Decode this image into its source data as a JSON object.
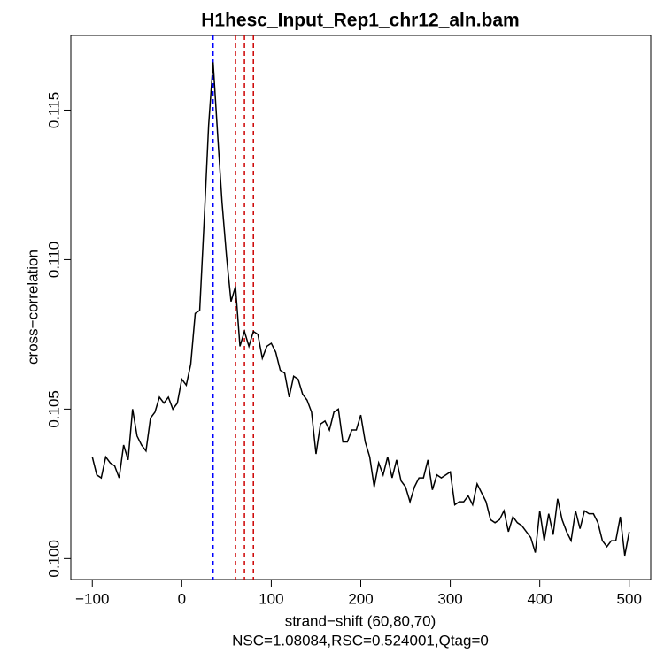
{
  "chart_data": {
    "type": "line",
    "title": "H1hesc_Input_Rep1_chr12_aln.bam",
    "xlabel": "strand−shift (60,80,70)",
    "xlabel2": "NSC=1.08084,RSC=0.524001,Qtag=0",
    "ylabel": "cross−correlation",
    "x": [
      -100,
      -95,
      -90,
      -85,
      -80,
      -75,
      -70,
      -65,
      -60,
      -55,
      -50,
      -45,
      -40,
      -35,
      -30,
      -25,
      -20,
      -15,
      -10,
      -5,
      0,
      5,
      10,
      15,
      20,
      25,
      30,
      35,
      40,
      45,
      50,
      55,
      60,
      65,
      70,
      75,
      80,
      85,
      90,
      95,
      100,
      105,
      110,
      115,
      120,
      125,
      130,
      135,
      140,
      145,
      150,
      155,
      160,
      165,
      170,
      175,
      180,
      185,
      190,
      195,
      200,
      205,
      210,
      215,
      220,
      225,
      230,
      235,
      240,
      245,
      250,
      255,
      260,
      265,
      270,
      275,
      280,
      285,
      290,
      295,
      300,
      305,
      310,
      315,
      320,
      325,
      330,
      335,
      340,
      345,
      350,
      355,
      360,
      365,
      370,
      375,
      380,
      385,
      390,
      395,
      400,
      405,
      410,
      415,
      420,
      425,
      430,
      435,
      440,
      445,
      450,
      455,
      460,
      465,
      470,
      475,
      480,
      485,
      490,
      495,
      500
    ],
    "series": [
      {
        "color": "#000000",
        "values": [
          0.1034,
          0.1028,
          0.1027,
          0.1034,
          0.1032,
          0.1031,
          0.1027,
          0.1038,
          0.1033,
          0.105,
          0.1041,
          0.1038,
          0.1036,
          0.1047,
          0.1049,
          0.1054,
          0.1052,
          0.1054,
          0.105,
          0.1052,
          0.106,
          0.1058,
          0.1065,
          0.1082,
          0.1083,
          0.1113,
          0.1145,
          0.1166,
          0.1142,
          0.1119,
          0.1101,
          0.1086,
          0.1091,
          0.1071,
          0.1076,
          0.1071,
          0.1076,
          0.1075,
          0.1067,
          0.1071,
          0.1072,
          0.1069,
          0.1063,
          0.1062,
          0.1054,
          0.1061,
          0.106,
          0.1055,
          0.1053,
          0.1049,
          0.1035,
          0.1045,
          0.1046,
          0.1043,
          0.1049,
          0.105,
          0.1039,
          0.1039,
          0.1043,
          0.1043,
          0.1048,
          0.1039,
          0.1034,
          0.1024,
          0.1032,
          0.1028,
          0.1034,
          0.1027,
          0.1033,
          0.1026,
          0.1024,
          0.1019,
          0.1024,
          0.1027,
          0.1027,
          0.1033,
          0.1023,
          0.1028,
          0.1027,
          0.1028,
          0.1029,
          0.1018,
          0.1019,
          0.1019,
          0.1021,
          0.1018,
          0.1025,
          0.1022,
          0.1019,
          0.1013,
          0.1012,
          0.1013,
          0.1016,
          0.1009,
          0.1014,
          0.1012,
          0.1011,
          0.1009,
          0.1007,
          0.1002,
          0.1016,
          0.1006,
          0.1015,
          0.1008,
          0.102,
          0.1013,
          0.1009,
          0.1006,
          0.1016,
          0.101,
          0.1016,
          0.1015,
          0.1015,
          0.1012,
          0.1006,
          0.1004,
          0.1006,
          0.1006,
          0.1014,
          0.1001,
          0.1009
        ]
      }
    ],
    "vlines": [
      {
        "value": 35,
        "color": "#0000ff"
      },
      {
        "value": 60,
        "color": "#cc0000"
      },
      {
        "value": 80,
        "color": "#cc0000"
      },
      {
        "value": 70,
        "color": "#cc0000"
      }
    ],
    "xlim": [
      -124,
      524
    ],
    "ylim": [
      0.0993,
      0.1175
    ],
    "xticks": [
      {
        "value": -100,
        "label": "−100"
      },
      0,
      100,
      200,
      300,
      400,
      500
    ],
    "yticks": [
      {
        "value": 0.1,
        "label": "0.100"
      },
      0.105,
      {
        "value": 0.11,
        "label": "0.110"
      },
      0.115
    ]
  }
}
